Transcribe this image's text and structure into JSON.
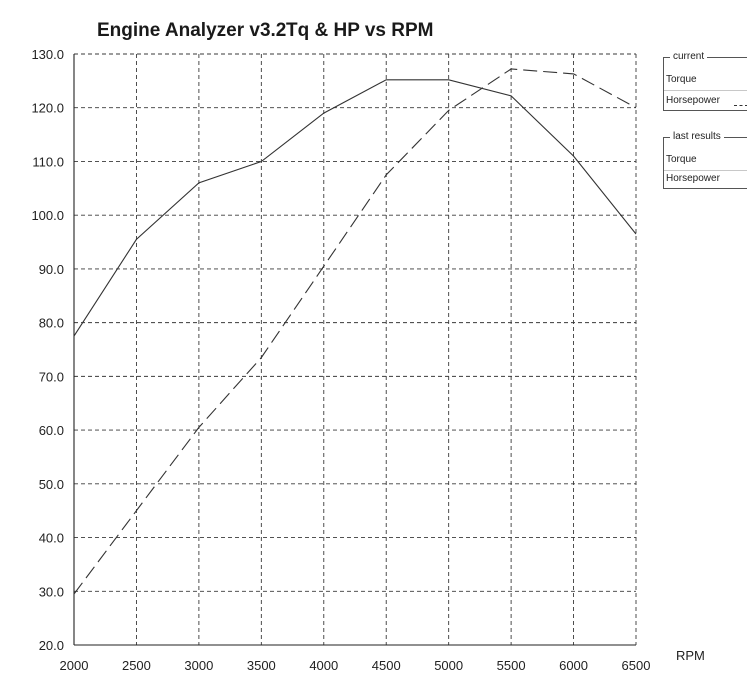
{
  "app_title": "Engine Analyzer v3.2",
  "chart_title": "Tq & HP vs RPM",
  "legend": {
    "groups": [
      {
        "title": "current",
        "items": [
          "Torque",
          "Horsepower"
        ]
      },
      {
        "title": "last results",
        "items": [
          "Torque",
          "Horsepower"
        ]
      }
    ]
  },
  "chart_data": {
    "type": "line",
    "title": "Tq & HP vs RPM",
    "xlabel": "RPM",
    "ylabel": "",
    "x": [
      2000,
      2500,
      3000,
      3500,
      4000,
      4500,
      5000,
      5500,
      6000,
      6500
    ],
    "xlim": [
      2000,
      6500
    ],
    "ylim": [
      20,
      130
    ],
    "x_ticks": [
      "2000",
      "2500",
      "3000",
      "3500",
      "4000",
      "4500",
      "5000",
      "5500",
      "6000",
      "6500"
    ],
    "y_ticks": [
      "20.0",
      "30.0",
      "40.0",
      "50.0",
      "60.0",
      "70.0",
      "80.0",
      "90.0",
      "100.0",
      "110.0",
      "120.0",
      "130.0"
    ],
    "grid": true,
    "legend_position": "right",
    "series": [
      {
        "name": "Torque",
        "line_style": "solid",
        "color": "#333333",
        "values": [
          77.5,
          95.5,
          106,
          110,
          119,
          125.2,
          125.2,
          122.2,
          111,
          96.5
        ]
      },
      {
        "name": "Horsepower",
        "line_style": "dashed",
        "color": "#333333",
        "values": [
          29.5,
          45,
          60.5,
          73.5,
          90.5,
          107.5,
          119.5,
          127.2,
          126.3,
          120
        ]
      }
    ]
  }
}
